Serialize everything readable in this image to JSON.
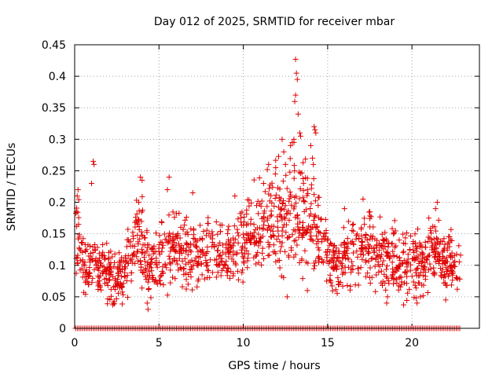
{
  "chart_data": {
    "type": "scatter",
    "title": "Day 012 of 2025, SRMTID for receiver mbar",
    "xlabel": "GPS time / hours",
    "ylabel": "SRMTID / TECUs",
    "xlim": [
      0,
      24
    ],
    "ylim": [
      0,
      0.45
    ],
    "xticks": [
      0,
      5,
      10,
      15,
      20
    ],
    "xtick_labels": [
      "0",
      "5",
      "10",
      "15",
      "20"
    ],
    "yticks": [
      0,
      0.05,
      0.1,
      0.15,
      0.2,
      0.25,
      0.3,
      0.35,
      0.4,
      0.45
    ],
    "ytick_labels": [
      "0",
      "0.05",
      "0.1",
      "0.15",
      "0.2",
      "0.25",
      "0.3",
      "0.35",
      "0.4",
      "0.45"
    ],
    "grid": true,
    "marker": "+",
    "color": "#e00000",
    "time_range_hours": [
      0.05,
      22.9
    ],
    "envelope": [
      {
        "x": 0.0,
        "mean": 0.14,
        "spread": 0.045
      },
      {
        "x": 0.3,
        "mean": 0.15,
        "spread": 0.05
      },
      {
        "x": 0.6,
        "mean": 0.095,
        "spread": 0.03
      },
      {
        "x": 1.2,
        "mean": 0.1,
        "spread": 0.035
      },
      {
        "x": 2.0,
        "mean": 0.085,
        "spread": 0.03
      },
      {
        "x": 2.8,
        "mean": 0.08,
        "spread": 0.028
      },
      {
        "x": 3.5,
        "mean": 0.13,
        "spread": 0.045
      },
      {
        "x": 4.0,
        "mean": 0.14,
        "spread": 0.05
      },
      {
        "x": 4.5,
        "mean": 0.09,
        "spread": 0.035
      },
      {
        "x": 5.5,
        "mean": 0.12,
        "spread": 0.04
      },
      {
        "x": 7.0,
        "mean": 0.12,
        "spread": 0.04
      },
      {
        "x": 8.5,
        "mean": 0.115,
        "spread": 0.035
      },
      {
        "x": 9.5,
        "mean": 0.12,
        "spread": 0.035
      },
      {
        "x": 10.5,
        "mean": 0.15,
        "spread": 0.045
      },
      {
        "x": 11.5,
        "mean": 0.17,
        "spread": 0.05
      },
      {
        "x": 12.5,
        "mean": 0.18,
        "spread": 0.055
      },
      {
        "x": 13.2,
        "mean": 0.19,
        "spread": 0.07
      },
      {
        "x": 14.0,
        "mean": 0.16,
        "spread": 0.055
      },
      {
        "x": 14.8,
        "mean": 0.13,
        "spread": 0.035
      },
      {
        "x": 15.5,
        "mean": 0.1,
        "spread": 0.035
      },
      {
        "x": 16.5,
        "mean": 0.12,
        "spread": 0.035
      },
      {
        "x": 17.5,
        "mean": 0.13,
        "spread": 0.04
      },
      {
        "x": 18.5,
        "mean": 0.11,
        "spread": 0.035
      },
      {
        "x": 19.5,
        "mean": 0.11,
        "spread": 0.04
      },
      {
        "x": 20.5,
        "mean": 0.1,
        "spread": 0.035
      },
      {
        "x": 21.3,
        "mean": 0.13,
        "spread": 0.04
      },
      {
        "x": 22.0,
        "mean": 0.1,
        "spread": 0.035
      },
      {
        "x": 22.9,
        "mean": 0.1,
        "spread": 0.03
      }
    ],
    "notable_points": [
      {
        "x": 0.15,
        "y": 0.21
      },
      {
        "x": 0.2,
        "y": 0.22
      },
      {
        "x": 0.1,
        "y": 0.185
      },
      {
        "x": 1.1,
        "y": 0.265
      },
      {
        "x": 1.15,
        "y": 0.26
      },
      {
        "x": 1.0,
        "y": 0.23
      },
      {
        "x": 3.9,
        "y": 0.24
      },
      {
        "x": 4.0,
        "y": 0.235
      },
      {
        "x": 3.8,
        "y": 0.2
      },
      {
        "x": 4.3,
        "y": 0.04
      },
      {
        "x": 4.35,
        "y": 0.03
      },
      {
        "x": 2.3,
        "y": 0.04
      },
      {
        "x": 5.6,
        "y": 0.24
      },
      {
        "x": 5.5,
        "y": 0.22
      },
      {
        "x": 7.0,
        "y": 0.215
      },
      {
        "x": 9.5,
        "y": 0.21
      },
      {
        "x": 11.2,
        "y": 0.23
      },
      {
        "x": 11.5,
        "y": 0.26
      },
      {
        "x": 11.9,
        "y": 0.245
      },
      {
        "x": 12.3,
        "y": 0.3
      },
      {
        "x": 12.4,
        "y": 0.28
      },
      {
        "x": 12.5,
        "y": 0.26
      },
      {
        "x": 12.8,
        "y": 0.29
      },
      {
        "x": 12.9,
        "y": 0.295
      },
      {
        "x": 13.1,
        "y": 0.427
      },
      {
        "x": 13.15,
        "y": 0.405
      },
      {
        "x": 13.2,
        "y": 0.395
      },
      {
        "x": 13.1,
        "y": 0.37
      },
      {
        "x": 13.05,
        "y": 0.36
      },
      {
        "x": 13.25,
        "y": 0.34
      },
      {
        "x": 13.35,
        "y": 0.31
      },
      {
        "x": 13.4,
        "y": 0.305
      },
      {
        "x": 13.0,
        "y": 0.3
      },
      {
        "x": 14.2,
        "y": 0.32
      },
      {
        "x": 14.25,
        "y": 0.315
      },
      {
        "x": 14.3,
        "y": 0.31
      },
      {
        "x": 14.1,
        "y": 0.27
      },
      {
        "x": 14.15,
        "y": 0.26
      },
      {
        "x": 14.0,
        "y": 0.29
      },
      {
        "x": 12.6,
        "y": 0.05
      },
      {
        "x": 13.8,
        "y": 0.06
      },
      {
        "x": 16.0,
        "y": 0.19
      },
      {
        "x": 17.1,
        "y": 0.205
      },
      {
        "x": 17.5,
        "y": 0.185
      },
      {
        "x": 18.5,
        "y": 0.04
      },
      {
        "x": 18.55,
        "y": 0.05
      },
      {
        "x": 20.3,
        "y": 0.04
      },
      {
        "x": 20.5,
        "y": 0.05
      },
      {
        "x": 21.4,
        "y": 0.19
      },
      {
        "x": 21.5,
        "y": 0.2
      },
      {
        "x": 21.0,
        "y": 0.175
      },
      {
        "x": 22.0,
        "y": 0.045
      }
    ],
    "zero_baseline_points": "near-continuous series of markers at y = 0 from x = 0.05 to x = 22.9"
  }
}
